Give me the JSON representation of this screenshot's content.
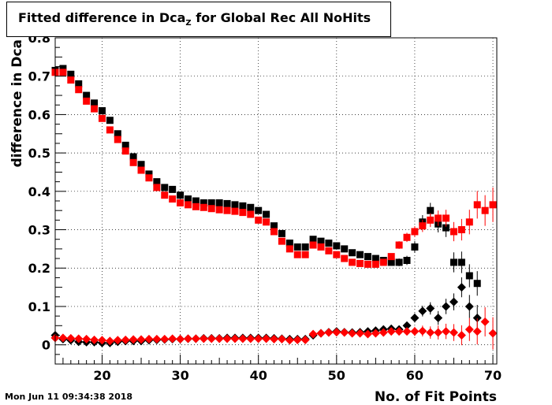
{
  "title": {
    "main": "Fitted difference in Dca",
    "sub": "Z",
    "rest": " for Global Rec All NoHits"
  },
  "timestamp": "Mon Jun 11 09:34:38 2018",
  "chart_data": {
    "type": "scatter",
    "xlabel": "No. of Fit Points",
    "ylabel": "difference in Dca",
    "xlim": [
      14,
      70.5
    ],
    "ylim": [
      -0.05,
      0.8
    ],
    "x_ticks": [
      20,
      30,
      40,
      50,
      60,
      70
    ],
    "y_ticks": [
      0,
      0.1,
      0.2,
      0.3,
      0.4,
      0.5,
      0.6,
      0.7,
      0.8
    ],
    "grid": true,
    "colors": {
      "black": "#000000",
      "red": "#ff0000"
    },
    "series": [
      {
        "marker": "square",
        "color": "black",
        "x": [
          14,
          15,
          16,
          17,
          18,
          19,
          20,
          21,
          22,
          23,
          24,
          25,
          26,
          27,
          28,
          29,
          30,
          31,
          32,
          33,
          34,
          35,
          36,
          37,
          38,
          39,
          40,
          41,
          42,
          43,
          44,
          45,
          46,
          47,
          48,
          49,
          50,
          51,
          52,
          53,
          54,
          55,
          56,
          57,
          58,
          59,
          60,
          61,
          62,
          63,
          64,
          65,
          66,
          67,
          68
        ],
        "y": [
          0.715,
          0.72,
          0.705,
          0.68,
          0.65,
          0.63,
          0.61,
          0.585,
          0.55,
          0.52,
          0.49,
          0.47,
          0.445,
          0.425,
          0.41,
          0.405,
          0.39,
          0.38,
          0.375,
          0.37,
          0.37,
          0.37,
          0.368,
          0.365,
          0.362,
          0.358,
          0.35,
          0.34,
          0.31,
          0.29,
          0.265,
          0.255,
          0.255,
          0.275,
          0.27,
          0.265,
          0.258,
          0.25,
          0.24,
          0.235,
          0.23,
          0.225,
          0.22,
          0.215,
          0.215,
          0.22,
          0.255,
          0.32,
          0.35,
          0.315,
          0.305,
          0.215,
          0.215,
          0.18,
          0.16
        ],
        "err": [
          0.008,
          0.008,
          0.008,
          0.008,
          0.008,
          0.008,
          0.008,
          0.008,
          0.008,
          0.008,
          0.008,
          0.008,
          0.008,
          0.008,
          0.008,
          0.008,
          0.008,
          0.008,
          0.008,
          0.008,
          0.008,
          0.008,
          0.008,
          0.008,
          0.008,
          0.008,
          0.008,
          0.008,
          0.008,
          0.008,
          0.008,
          0.008,
          0.008,
          0.008,
          0.008,
          0.008,
          0.008,
          0.008,
          0.008,
          0.008,
          0.008,
          0.008,
          0.008,
          0.008,
          0.01,
          0.012,
          0.015,
          0.018,
          0.02,
          0.022,
          0.024,
          0.026,
          0.028,
          0.03,
          0.032
        ]
      },
      {
        "marker": "square",
        "color": "red",
        "x": [
          14,
          15,
          16,
          17,
          18,
          19,
          20,
          21,
          22,
          23,
          24,
          25,
          26,
          27,
          28,
          29,
          30,
          31,
          32,
          33,
          34,
          35,
          36,
          37,
          38,
          39,
          40,
          41,
          42,
          43,
          44,
          45,
          46,
          47,
          48,
          49,
          50,
          51,
          52,
          53,
          54,
          55,
          56,
          57,
          58,
          59,
          60,
          61,
          62,
          63,
          64,
          65,
          66,
          67,
          68,
          69,
          70
        ],
        "y": [
          0.71,
          0.71,
          0.69,
          0.665,
          0.635,
          0.615,
          0.59,
          0.56,
          0.535,
          0.505,
          0.475,
          0.455,
          0.435,
          0.41,
          0.39,
          0.38,
          0.37,
          0.365,
          0.36,
          0.358,
          0.355,
          0.352,
          0.35,
          0.348,
          0.345,
          0.34,
          0.325,
          0.32,
          0.295,
          0.27,
          0.25,
          0.235,
          0.235,
          0.26,
          0.255,
          0.245,
          0.235,
          0.225,
          0.215,
          0.212,
          0.21,
          0.21,
          0.215,
          0.23,
          0.26,
          0.28,
          0.295,
          0.31,
          0.325,
          0.33,
          0.33,
          0.295,
          0.3,
          0.32,
          0.365,
          0.35,
          0.365
        ],
        "err": [
          0.008,
          0.008,
          0.008,
          0.008,
          0.008,
          0.008,
          0.008,
          0.008,
          0.008,
          0.008,
          0.008,
          0.008,
          0.008,
          0.008,
          0.008,
          0.008,
          0.008,
          0.008,
          0.008,
          0.008,
          0.008,
          0.008,
          0.008,
          0.008,
          0.008,
          0.008,
          0.008,
          0.008,
          0.008,
          0.008,
          0.008,
          0.008,
          0.008,
          0.008,
          0.008,
          0.008,
          0.008,
          0.008,
          0.008,
          0.008,
          0.008,
          0.008,
          0.008,
          0.008,
          0.01,
          0.012,
          0.014,
          0.016,
          0.018,
          0.02,
          0.022,
          0.025,
          0.028,
          0.032,
          0.036,
          0.04,
          0.045
        ]
      },
      {
        "marker": "diamond",
        "color": "black",
        "x": [
          14,
          15,
          16,
          17,
          18,
          19,
          20,
          21,
          22,
          23,
          24,
          25,
          26,
          27,
          28,
          29,
          30,
          31,
          32,
          33,
          34,
          35,
          36,
          37,
          38,
          39,
          40,
          41,
          42,
          43,
          44,
          45,
          46,
          47,
          48,
          49,
          50,
          51,
          52,
          53,
          54,
          55,
          56,
          57,
          58,
          59,
          60,
          61,
          62,
          63,
          64,
          65,
          66,
          67,
          68
        ],
        "y": [
          0.025,
          0.015,
          0.012,
          0.008,
          0.007,
          0.007,
          0.005,
          0.005,
          0.008,
          0.01,
          0.01,
          0.01,
          0.012,
          0.013,
          0.014,
          0.015,
          0.015,
          0.016,
          0.016,
          0.017,
          0.017,
          0.017,
          0.018,
          0.018,
          0.018,
          0.018,
          0.018,
          0.018,
          0.017,
          0.016,
          0.015,
          0.015,
          0.015,
          0.025,
          0.03,
          0.033,
          0.035,
          0.033,
          0.032,
          0.033,
          0.035,
          0.037,
          0.04,
          0.042,
          0.04,
          0.05,
          0.07,
          0.088,
          0.095,
          0.07,
          0.1,
          0.112,
          0.15,
          0.1,
          0.07
        ],
        "err": [
          0.006,
          0.006,
          0.006,
          0.006,
          0.006,
          0.006,
          0.006,
          0.006,
          0.006,
          0.006,
          0.006,
          0.006,
          0.006,
          0.006,
          0.006,
          0.006,
          0.006,
          0.006,
          0.006,
          0.006,
          0.006,
          0.006,
          0.006,
          0.006,
          0.006,
          0.006,
          0.006,
          0.006,
          0.006,
          0.006,
          0.006,
          0.006,
          0.006,
          0.006,
          0.006,
          0.006,
          0.006,
          0.006,
          0.006,
          0.006,
          0.006,
          0.006,
          0.006,
          0.006,
          0.008,
          0.01,
          0.012,
          0.014,
          0.016,
          0.018,
          0.02,
          0.022,
          0.026,
          0.03,
          0.034
        ]
      },
      {
        "marker": "diamond",
        "color": "red",
        "x": [
          14,
          15,
          16,
          17,
          18,
          19,
          20,
          21,
          22,
          23,
          24,
          25,
          26,
          27,
          28,
          29,
          30,
          31,
          32,
          33,
          34,
          35,
          36,
          37,
          38,
          39,
          40,
          41,
          42,
          43,
          44,
          45,
          46,
          47,
          48,
          49,
          50,
          51,
          52,
          53,
          54,
          55,
          56,
          57,
          58,
          59,
          60,
          61,
          62,
          63,
          64,
          65,
          66,
          67,
          68,
          69,
          70
        ],
        "y": [
          0.018,
          0.018,
          0.017,
          0.016,
          0.015,
          0.013,
          0.012,
          0.01,
          0.012,
          0.013,
          0.014,
          0.014,
          0.015,
          0.015,
          0.015,
          0.016,
          0.015,
          0.016,
          0.016,
          0.016,
          0.016,
          0.016,
          0.016,
          0.016,
          0.016,
          0.016,
          0.016,
          0.016,
          0.015,
          0.015,
          0.012,
          0.013,
          0.013,
          0.028,
          0.03,
          0.032,
          0.033,
          0.032,
          0.03,
          0.03,
          0.028,
          0.03,
          0.032,
          0.035,
          0.035,
          0.035,
          0.035,
          0.036,
          0.032,
          0.032,
          0.035,
          0.032,
          0.025,
          0.04,
          0.035,
          0.06,
          0.03
        ],
        "err": [
          0.006,
          0.006,
          0.006,
          0.006,
          0.006,
          0.006,
          0.006,
          0.006,
          0.006,
          0.006,
          0.006,
          0.006,
          0.006,
          0.006,
          0.006,
          0.006,
          0.006,
          0.006,
          0.006,
          0.006,
          0.006,
          0.006,
          0.006,
          0.006,
          0.006,
          0.006,
          0.006,
          0.006,
          0.006,
          0.006,
          0.006,
          0.006,
          0.006,
          0.006,
          0.006,
          0.006,
          0.006,
          0.006,
          0.006,
          0.006,
          0.006,
          0.006,
          0.006,
          0.006,
          0.008,
          0.01,
          0.012,
          0.014,
          0.016,
          0.018,
          0.02,
          0.022,
          0.026,
          0.03,
          0.034,
          0.038,
          0.042
        ]
      }
    ]
  }
}
